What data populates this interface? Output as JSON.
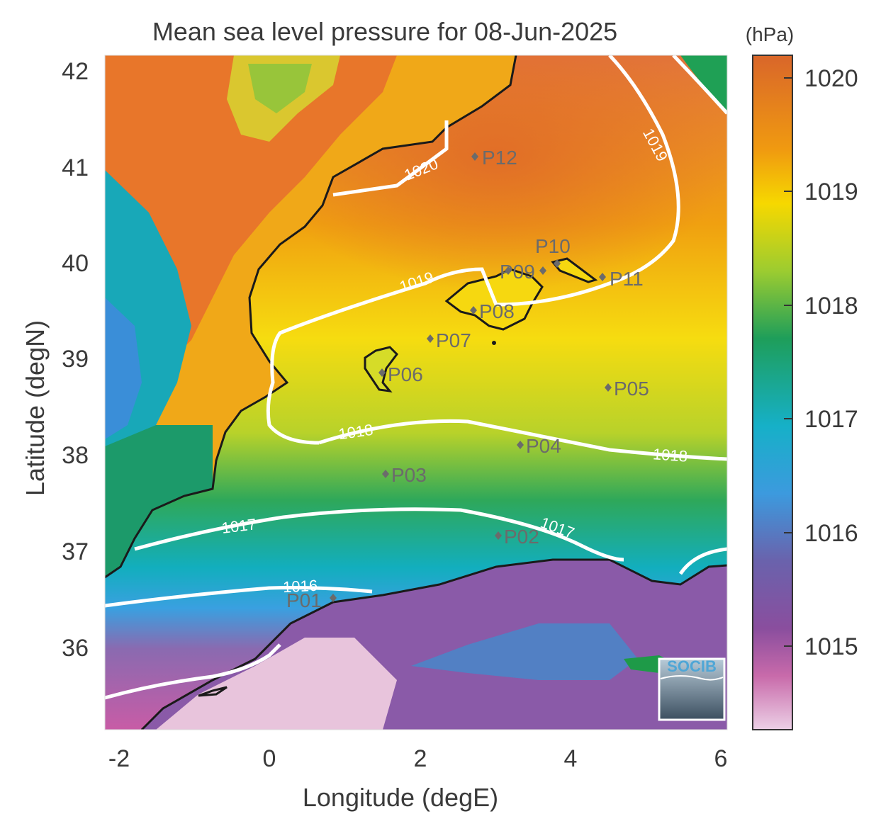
{
  "title": "Mean sea level pressure for 08-Jun-2025",
  "xlabel": "Longitude (degE)",
  "ylabel": "Latitude (degN)",
  "x_ticks": [
    "-2",
    "0",
    "2",
    "4",
    "6"
  ],
  "y_ticks": [
    "42",
    "41",
    "40",
    "39",
    "38",
    "37",
    "36"
  ],
  "colorbar": {
    "unit": "(hPa)",
    "ticks": [
      "1020",
      "1019",
      "1018",
      "1017",
      "1016",
      "1015"
    ],
    "colors": [
      "#d9662a",
      "#f0b000",
      "#f6e000",
      "#22a05a",
      "#16b0c8",
      "#4a8fd0",
      "#7a58a6",
      "#c056a0",
      "#e8c8e0"
    ]
  },
  "contours": [
    {
      "label": "1020"
    },
    {
      "label": "1019"
    },
    {
      "label": "1018"
    },
    {
      "label": "1017"
    },
    {
      "label": "1016"
    }
  ],
  "points": [
    {
      "name": "P01"
    },
    {
      "name": "P02"
    },
    {
      "name": "P03"
    },
    {
      "name": "P04"
    },
    {
      "name": "P05"
    },
    {
      "name": "P06"
    },
    {
      "name": "P07"
    },
    {
      "name": "P08"
    },
    {
      "name": "P09"
    },
    {
      "name": "P10"
    },
    {
      "name": "P11"
    },
    {
      "name": "P12"
    }
  ],
  "logo_text": "SOCIB"
}
